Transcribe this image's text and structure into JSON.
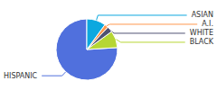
{
  "chart_data": {
    "type": "pie",
    "categories": [
      "HISPANIC",
      "BLACK",
      "WHITE",
      "A.I.",
      "ASIAN"
    ],
    "values": [
      76,
      9,
      3,
      2,
      10
    ]
  }
}
